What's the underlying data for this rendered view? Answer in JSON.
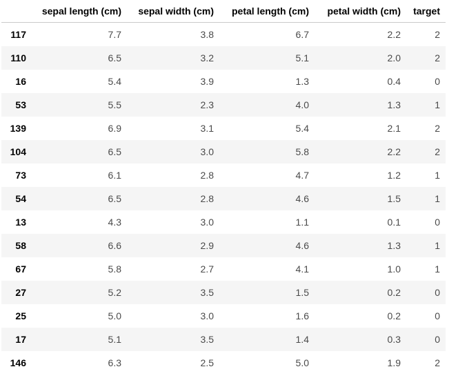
{
  "table": {
    "columns": [
      "sepal length (cm)",
      "sepal width (cm)",
      "petal length (cm)",
      "petal width (cm)",
      "target"
    ],
    "rows": [
      {
        "index": "117",
        "values": [
          "7.7",
          "3.8",
          "6.7",
          "2.2",
          "2"
        ]
      },
      {
        "index": "110",
        "values": [
          "6.5",
          "3.2",
          "5.1",
          "2.0",
          "2"
        ]
      },
      {
        "index": "16",
        "values": [
          "5.4",
          "3.9",
          "1.3",
          "0.4",
          "0"
        ]
      },
      {
        "index": "53",
        "values": [
          "5.5",
          "2.3",
          "4.0",
          "1.3",
          "1"
        ]
      },
      {
        "index": "139",
        "values": [
          "6.9",
          "3.1",
          "5.4",
          "2.1",
          "2"
        ]
      },
      {
        "index": "104",
        "values": [
          "6.5",
          "3.0",
          "5.8",
          "2.2",
          "2"
        ]
      },
      {
        "index": "73",
        "values": [
          "6.1",
          "2.8",
          "4.7",
          "1.2",
          "1"
        ]
      },
      {
        "index": "54",
        "values": [
          "6.5",
          "2.8",
          "4.6",
          "1.5",
          "1"
        ]
      },
      {
        "index": "13",
        "values": [
          "4.3",
          "3.0",
          "1.1",
          "0.1",
          "0"
        ]
      },
      {
        "index": "58",
        "values": [
          "6.6",
          "2.9",
          "4.6",
          "1.3",
          "1"
        ]
      },
      {
        "index": "67",
        "values": [
          "5.8",
          "2.7",
          "4.1",
          "1.0",
          "1"
        ]
      },
      {
        "index": "27",
        "values": [
          "5.2",
          "3.5",
          "1.5",
          "0.2",
          "0"
        ]
      },
      {
        "index": "25",
        "values": [
          "5.0",
          "3.0",
          "1.6",
          "0.2",
          "0"
        ]
      },
      {
        "index": "17",
        "values": [
          "5.1",
          "3.5",
          "1.4",
          "0.3",
          "0"
        ]
      },
      {
        "index": "146",
        "values": [
          "6.3",
          "2.5",
          "5.0",
          "1.9",
          "2"
        ]
      }
    ]
  },
  "colors": {
    "background": "#ffffff",
    "stripe": "#f5f5f5",
    "header_border": "#c9c9c9",
    "cell_text": "#4a4a4a",
    "index_text": "#000000"
  }
}
